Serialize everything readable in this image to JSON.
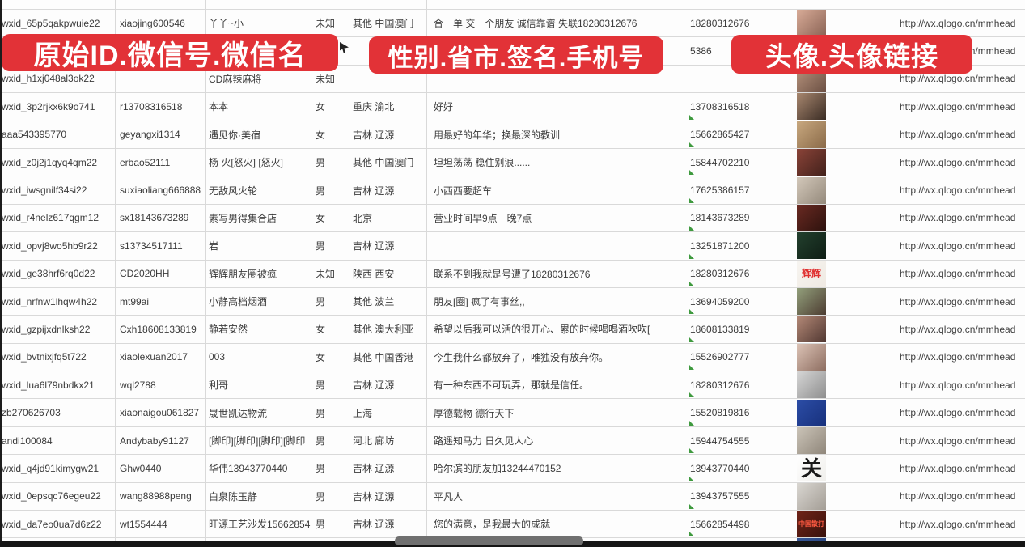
{
  "banners": {
    "left": "原始ID.微信号.微信名",
    "middle": "性别.省市.签名.手机号",
    "right": "头像.头像链接",
    "color": "#e23237"
  },
  "link_text": "http://wx.qlogo.cn/mmhead",
  "accent_colors": {
    "grid_line": "#d9d9d9",
    "error_indicator_green": "#3f9a3f",
    "scrollbar_track": "#151515",
    "scrollbar_thumb": "#707070"
  },
  "rows": [
    {
      "partial": "top",
      "id": "",
      "account": "",
      "name": "",
      "gender": "",
      "region": "",
      "signature": "",
      "phone": "",
      "link": false,
      "green": false
    },
    {
      "id": "wxid_65p5qakpwuie22",
      "account": "xiaojing600546",
      "name": "丫丫~小",
      "gender": "未知",
      "region": "其他 中国澳门",
      "signature": "合一单 交一个朋友 诚信靠谱 失联18280312676",
      "phone": "18280312676",
      "avatar": {
        "c1": "#d8ab97",
        "c2": "#8a6355"
      },
      "link": true,
      "green": false
    },
    {
      "id": "",
      "account": "",
      "name": "",
      "gender": "",
      "region": "",
      "signature": "",
      "phone": "5386",
      "avatar": {
        "c1": "#c9a68f",
        "c2": "#7d5c4e"
      },
      "link": true,
      "green": false
    },
    {
      "id": "wxid_h1xj048al3ok22",
      "account": "",
      "name": "CD麻辣麻将",
      "gender": "未知",
      "region": "",
      "signature": "",
      "phone": "",
      "avatar": {
        "c1": "#b9967f",
        "c2": "#6b4f43"
      },
      "link": true,
      "green": false
    },
    {
      "id": "wxid_3p2rjkx6k9o741",
      "account": "r13708316518",
      "name": "本本",
      "gender": "女",
      "region": "重庆 渝北",
      "signature": "好好",
      "phone": "13708316518",
      "avatar": {
        "c1": "#a8876f",
        "c2": "#3a2c24"
      },
      "link": true,
      "green": true
    },
    {
      "id": "aaa543395770",
      "account": "geyangxi1314",
      "name": "遇见你·美宿",
      "gender": "女",
      "region": "吉林 辽源",
      "signature": "用最好的年华；换最深的教训",
      "phone": "15662865427",
      "avatar": {
        "c1": "#c8a87f",
        "c2": "#8a6a48"
      },
      "link": true,
      "green": true
    },
    {
      "id": "wxid_z0j2j1qyq4qm22",
      "account": "erbao52111",
      "name": "杨 火[怒火] [怒火]",
      "gender": "男",
      "region": "其他 中国澳门",
      "signature": "坦坦荡荡 稳住别浪......",
      "phone": "15844702210",
      "avatar": {
        "c1": "#8a4338",
        "c2": "#42211b"
      },
      "link": true,
      "green": true
    },
    {
      "id": "wxid_iwsgnilf34si22",
      "account": "suxiaoliang666888",
      "name": "无敌风火轮",
      "gender": "男",
      "region": "吉林 辽源",
      "signature": "小西西要超车",
      "phone": "17625386157",
      "avatar": {
        "c1": "#d3c8ba",
        "c2": "#94897b"
      },
      "link": true,
      "green": true
    },
    {
      "id": "wxid_r4nelz617qgm12",
      "account": "sx18143673289",
      "name": "素写男得集合店",
      "gender": "女",
      "region": "北京",
      "signature": "营业时间早9点－晚7点",
      "phone": "18143673289",
      "avatar": {
        "c1": "#6a2a22",
        "c2": "#2c110d"
      },
      "link": true,
      "green": true
    },
    {
      "id": "wxid_opvj8wo5hb9r22",
      "account": "s13734517111",
      "name": "岩",
      "gender": "男",
      "region": "吉林 辽源",
      "signature": "",
      "phone": "13251871200",
      "avatar": {
        "c1": "#23402e",
        "c2": "#0e1d14"
      },
      "link": true,
      "green": true
    },
    {
      "id": "wxid_ge38hrf6rq0d22",
      "account": "CD2020HH",
      "name": "辉辉朋友圈被疯",
      "gender": "未知",
      "region": "陕西 西安",
      "signature": "联系不到我就是号遭了18280312676",
      "phone": "18280312676",
      "avatar": {
        "c1": "#f7f5f1",
        "c2": "#efe9e2",
        "label": "辉辉",
        "labelColor": "#e03030"
      },
      "link": true,
      "green": true
    },
    {
      "id": "wxid_nrfnw1lhqw4h22",
      "account": "mt99ai",
      "name": "小静高档烟酒",
      "gender": "男",
      "region": "其他 波兰",
      "signature": "朋友[圈] 疯了有事丝,,",
      "phone": "13694059200",
      "avatar": {
        "c1": "#93a07c",
        "c2": "#4c3c31"
      },
      "link": true,
      "green": true
    },
    {
      "id": "wxid_gzpijxdnlksh22",
      "account": "Cxh18608133819",
      "name": "静若安然",
      "gender": "女",
      "region": "其他 澳大利亚",
      "signature": "希望以后我可以活的很开心、累的时候喝喝酒吹吹[",
      "phone": "18608133819",
      "avatar": {
        "c1": "#b58a78",
        "c2": "#503731"
      },
      "link": true,
      "green": true
    },
    {
      "id": "wxid_bvtnixjfq5t722",
      "account": "xiaolexuan2017",
      "name": "003",
      "gender": "女",
      "region": "其他 中国香港",
      "signature": "今生我什么都放弃了，唯独没有放弃你。",
      "phone": "15526902777",
      "avatar": {
        "c1": "#dcc3b6",
        "c2": "#8d6d60"
      },
      "link": true,
      "green": true
    },
    {
      "id": "wxid_lua6l79nbdkx21",
      "account": "wql2788",
      "name": "利哥",
      "gender": "男",
      "region": "吉林 辽源",
      "signature": "有一种东西不可玩弄，那就是信任。",
      "phone": "18280312676",
      "avatar": {
        "c1": "#d6d6d6",
        "c2": "#8e8e8e"
      },
      "link": true,
      "green": true
    },
    {
      "id": "zb270626703",
      "account": "xiaonaigou061827",
      "name": "晟世凯达物流",
      "gender": "男",
      "region": "上海",
      "signature": "厚德载物 德行天下",
      "phone": "15520819816",
      "avatar": {
        "c1": "#2c4da6",
        "c2": "#17307c"
      },
      "link": true,
      "green": true
    },
    {
      "id": "andi100084",
      "account": "Andybaby91127",
      "name": "[脚印][脚印][脚印][脚印",
      "gender": "男",
      "region": "河北 廊坊",
      "signature": "路遥知马力 日久见人心",
      "phone": "15944754555",
      "avatar": {
        "c1": "#cbc4b8",
        "c2": "#8f867a"
      },
      "link": true,
      "green": true
    },
    {
      "id": "wxid_q4jd91kimygw21",
      "account": "Ghw0440",
      "name": "华伟13943770440",
      "gender": "男",
      "region": "吉林 辽源",
      "signature": "哈尔滨的朋友加13244470152",
      "phone": "13943770440",
      "avatar": {
        "c1": "#ffffff",
        "c2": "#f0efec",
        "label": "关",
        "labelColor": "#1a1a1a",
        "big": true
      },
      "link": true,
      "green": true
    },
    {
      "id": "wxid_0epsqc76egeu22",
      "account": "wang88988peng",
      "name": "白泉陈玉静",
      "gender": "男",
      "region": "吉林 辽源",
      "signature": "平凡人",
      "phone": "13943757555",
      "avatar": {
        "c1": "#dad7d2",
        "c2": "#a39d95"
      },
      "link": true,
      "green": true
    },
    {
      "id": "wxid_da7eo0ua7d6z22",
      "account": "wt1554444",
      "name": "旺源工艺沙发15662854",
      "gender": "男",
      "region": "吉林 辽源",
      "signature": "您的满意，是我最大的成就",
      "phone": "15662854498",
      "avatar": {
        "c1": "#702419",
        "c2": "#38110b",
        "label": "中国散打",
        "labelColor": "#ff5a42",
        "small": true
      },
      "link": true,
      "green": true
    },
    {
      "partial": "bottom",
      "id": "",
      "account": "",
      "name": "",
      "gender": "",
      "region": "",
      "signature": "",
      "phone": "",
      "avatar": {
        "c1": "#3a5a9a",
        "c2": "#24407a"
      },
      "link": false,
      "green": false
    }
  ]
}
